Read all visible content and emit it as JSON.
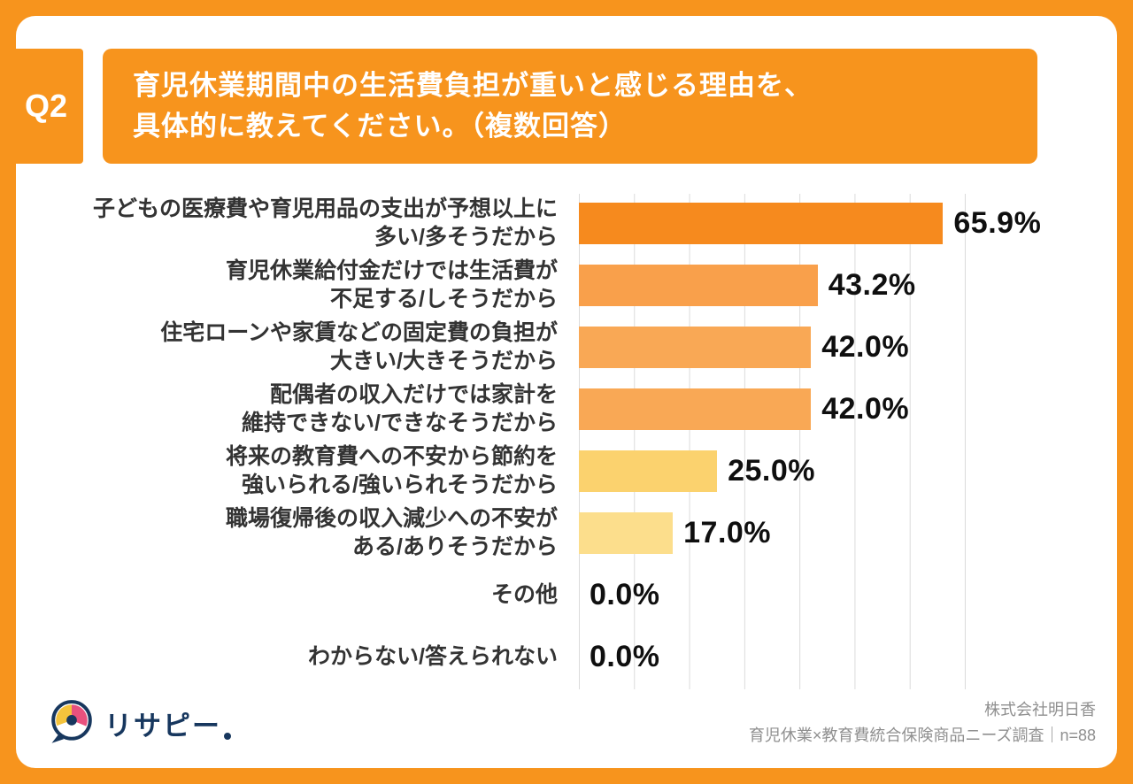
{
  "colors": {
    "frame": "#F7941D",
    "accent": "#F7941D",
    "grid": "#DBDBDB"
  },
  "header": {
    "q_label": "Q2",
    "question": "育児休業期間中の生活費負担が重いと感じる理由を、\n具体的に教えてください。（複数回答）"
  },
  "chart_data": {
    "type": "bar",
    "orientation": "horizontal",
    "title": "育児休業期間中の生活費負担が重いと感じる理由を、具体的に教えてください。（複数回答）",
    "categories": [
      "子どもの医療費や育児用品の支出が予想以上に\n多い/多そうだから",
      "育児休業給付金だけでは生活費が\n不足する/しそうだから",
      "住宅ローンや家賃などの固定費の負担が\n大きい/大きそうだから",
      "配偶者の収入だけでは家計を\n維持できない/できなそうだから",
      "将来の教育費への不安から節約を\n強いられる/強いられそうだから",
      "職場復帰後の収入減少への不安が\nある/ありそうだから",
      "その他",
      "わからない/答えられない"
    ],
    "values": [
      65.9,
      43.2,
      42.0,
      42.0,
      25.0,
      17.0,
      0.0,
      0.0
    ],
    "value_labels": [
      "65.9%",
      "43.2%",
      "42.0%",
      "42.0%",
      "25.0%",
      "17.0%",
      "0.0%",
      "0.0%"
    ],
    "bar_colors": [
      "#F68A1E",
      "#F9A04B",
      "#F9A855",
      "#F9A855",
      "#FBD26E",
      "#FCDE8C",
      "#FCDE8C",
      "#FCDE8C"
    ],
    "xlim": [
      0,
      70
    ],
    "gridline_step": 10,
    "grid": true,
    "legend": "none"
  },
  "footer": {
    "logo_text": "リサピー",
    "source_company": "株式会社明日香",
    "source_survey": "育児休業×教育費統合保険商品ニーズ調査｜n=88"
  }
}
